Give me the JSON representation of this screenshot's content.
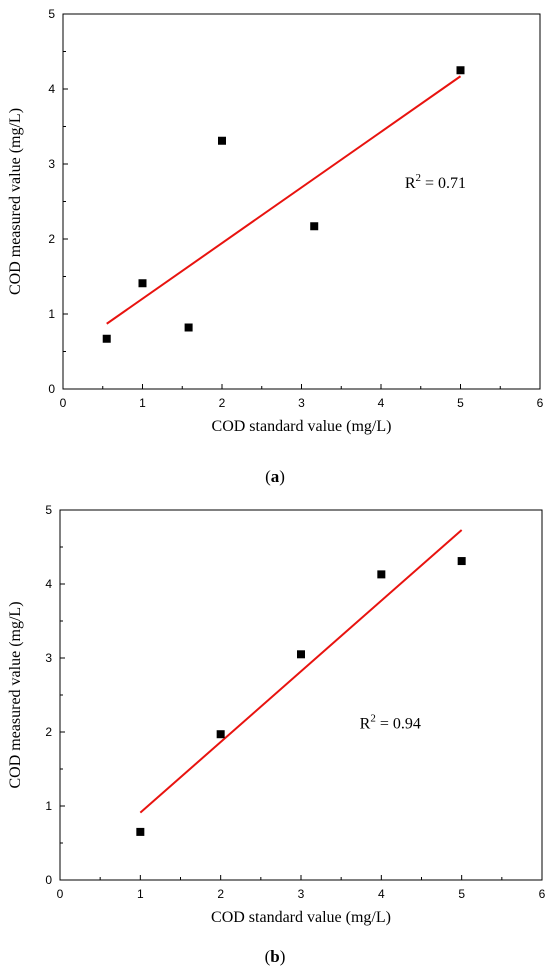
{
  "chart_data": [
    {
      "type": "scatter",
      "panel_label": "a",
      "xlabel": "COD standard value (mg/L)",
      "ylabel": "COD measured value (mg/L)",
      "xlim": [
        0,
        6
      ],
      "ylim": [
        0,
        5
      ],
      "xticks": [
        "0",
        "1",
        "2",
        "3",
        "4",
        "5",
        "6"
      ],
      "yticks": [
        "0",
        "1",
        "2",
        "3",
        "4",
        "5"
      ],
      "series": [
        {
          "x": [
            0.55,
            1.0,
            1.58,
            2.0,
            3.16,
            5.0
          ],
          "y": [
            0.67,
            1.41,
            0.82,
            3.31,
            2.17,
            4.25
          ],
          "marker": "square",
          "color": "#000000"
        }
      ],
      "fit_line": {
        "x": [
          0.55,
          5.0
        ],
        "y": [
          0.87,
          4.17
        ],
        "color": "#e8130f"
      },
      "annotation": {
        "base": "R",
        "sup": "2",
        "rest": " = 0.71",
        "x": 4.3,
        "y": 2.68
      },
      "grid": false
    },
    {
      "type": "scatter",
      "panel_label": "b",
      "xlabel": "COD standard value (mg/L)",
      "ylabel": "COD measured value (mg/L)",
      "xlim": [
        0,
        6
      ],
      "ylim": [
        0,
        5
      ],
      "xticks": [
        "0",
        "1",
        "2",
        "3",
        "4",
        "5",
        "6"
      ],
      "yticks": [
        "0",
        "1",
        "2",
        "3",
        "4",
        "5"
      ],
      "series": [
        {
          "x": [
            1.0,
            2.0,
            3.0,
            4.0,
            5.0
          ],
          "y": [
            0.65,
            1.97,
            3.05,
            4.13,
            4.31
          ],
          "marker": "square",
          "color": "#000000"
        }
      ],
      "fit_line": {
        "x": [
          1.0,
          5.0
        ],
        "y": [
          0.91,
          4.73
        ],
        "color": "#e8130f"
      },
      "annotation": {
        "base": "R",
        "sup": "2",
        "rest": " = 0.94",
        "x": 3.73,
        "y": 2.05
      },
      "grid": false
    }
  ]
}
